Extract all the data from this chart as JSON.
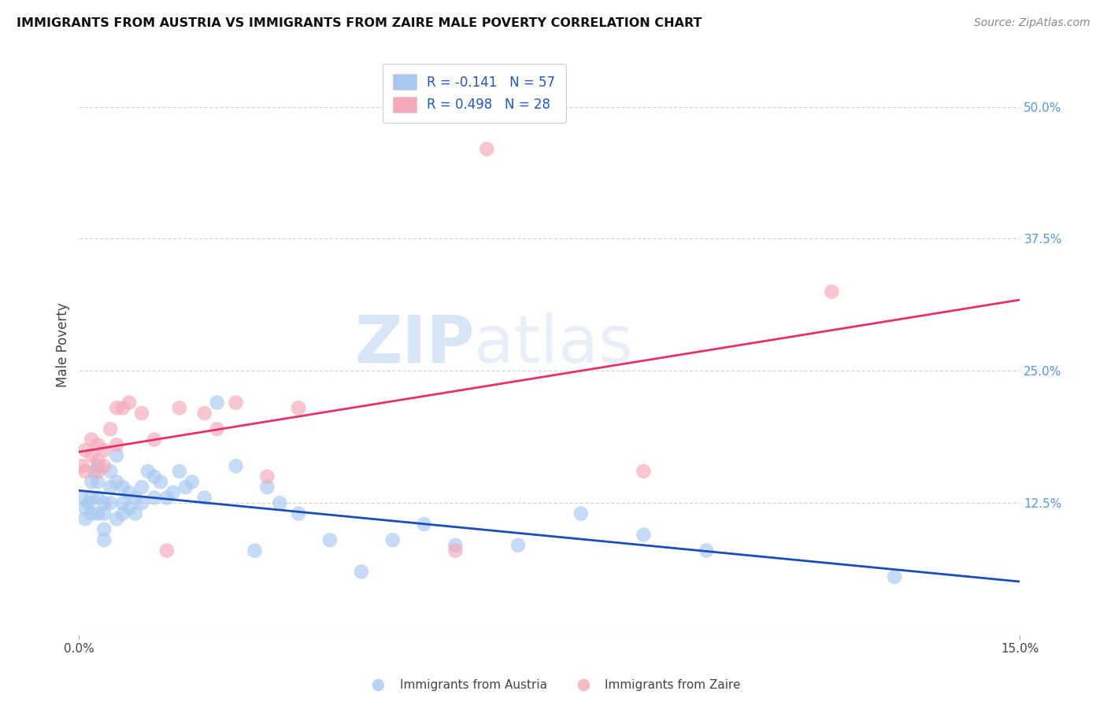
{
  "title": "IMMIGRANTS FROM AUSTRIA VS IMMIGRANTS FROM ZAIRE MALE POVERTY CORRELATION CHART",
  "source": "Source: ZipAtlas.com",
  "ylabel": "Male Poverty",
  "xlim": [
    0.0,
    0.15
  ],
  "ylim": [
    0.0,
    0.55
  ],
  "ytick_labels_right": [
    "50.0%",
    "37.5%",
    "25.0%",
    "12.5%",
    ""
  ],
  "ytick_positions_right": [
    0.5,
    0.375,
    0.25,
    0.125,
    0.0
  ],
  "legend_austria": "R = -0.141   N = 57",
  "legend_zaire": "R = 0.498   N = 28",
  "color_austria": "#a8c8f0",
  "color_zaire": "#f4a8b8",
  "line_color_austria": "#1a4fba",
  "line_color_zaire": "#e8306a",
  "background_color": "#ffffff",
  "grid_color": "#cccccc",
  "austria_x": [
    0.0005,
    0.001,
    0.001,
    0.0015,
    0.002,
    0.002,
    0.002,
    0.0025,
    0.003,
    0.003,
    0.003,
    0.003,
    0.004,
    0.004,
    0.004,
    0.004,
    0.005,
    0.005,
    0.005,
    0.006,
    0.006,
    0.006,
    0.007,
    0.007,
    0.007,
    0.008,
    0.008,
    0.009,
    0.009,
    0.01,
    0.01,
    0.011,
    0.012,
    0.012,
    0.013,
    0.014,
    0.015,
    0.016,
    0.017,
    0.018,
    0.02,
    0.022,
    0.025,
    0.028,
    0.03,
    0.032,
    0.035,
    0.04,
    0.045,
    0.05,
    0.055,
    0.06,
    0.07,
    0.08,
    0.09,
    0.1,
    0.13
  ],
  "austria_y": [
    0.13,
    0.12,
    0.11,
    0.125,
    0.145,
    0.13,
    0.115,
    0.155,
    0.16,
    0.145,
    0.13,
    0.115,
    0.125,
    0.115,
    0.1,
    0.09,
    0.155,
    0.14,
    0.125,
    0.17,
    0.145,
    0.11,
    0.14,
    0.125,
    0.115,
    0.135,
    0.12,
    0.13,
    0.115,
    0.125,
    0.14,
    0.155,
    0.13,
    0.15,
    0.145,
    0.13,
    0.135,
    0.155,
    0.14,
    0.145,
    0.13,
    0.22,
    0.16,
    0.08,
    0.14,
    0.125,
    0.115,
    0.09,
    0.06,
    0.09,
    0.105,
    0.085,
    0.085,
    0.115,
    0.095,
    0.08,
    0.055
  ],
  "zaire_x": [
    0.0005,
    0.001,
    0.001,
    0.002,
    0.002,
    0.003,
    0.003,
    0.003,
    0.004,
    0.004,
    0.005,
    0.006,
    0.006,
    0.007,
    0.008,
    0.01,
    0.012,
    0.014,
    0.016,
    0.02,
    0.022,
    0.025,
    0.03,
    0.035,
    0.06,
    0.065,
    0.09,
    0.12
  ],
  "zaire_y": [
    0.16,
    0.175,
    0.155,
    0.17,
    0.185,
    0.165,
    0.18,
    0.155,
    0.175,
    0.16,
    0.195,
    0.18,
    0.215,
    0.215,
    0.22,
    0.21,
    0.185,
    0.08,
    0.215,
    0.21,
    0.195,
    0.22,
    0.15,
    0.215,
    0.08,
    0.46,
    0.155,
    0.325
  ]
}
